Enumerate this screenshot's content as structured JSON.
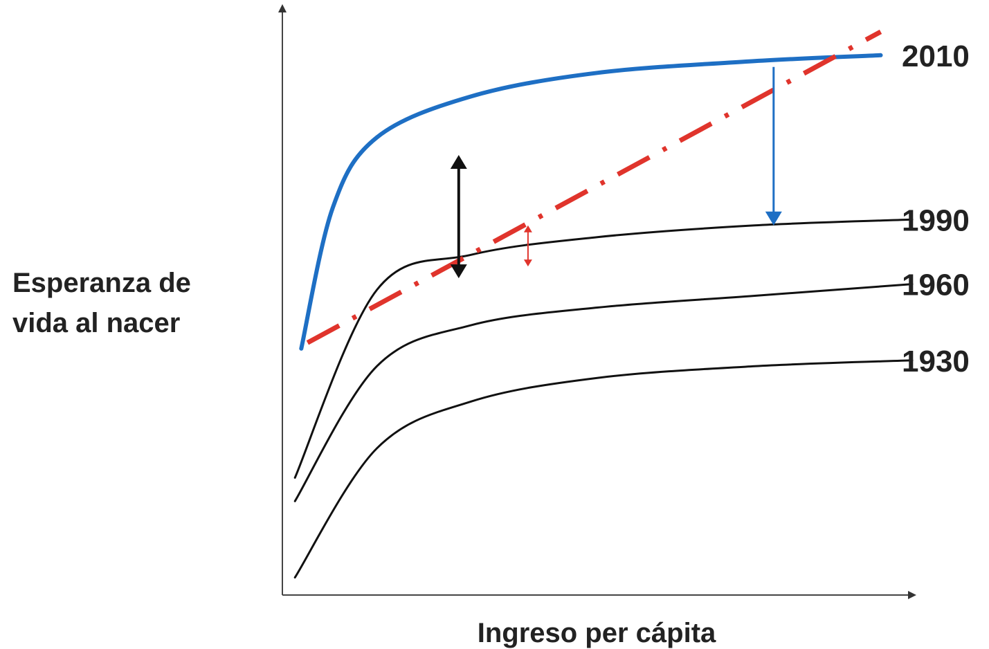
{
  "chart_data": {
    "type": "line",
    "xlabel": "Ingreso per cápita",
    "ylabel_lines": [
      "Esperanza de",
      "vida al nacer"
    ],
    "series": [
      {
        "name": "1930",
        "color": "#111111",
        "style": "solid",
        "points": [
          [
            0.02,
            0.03
          ],
          [
            0.15,
            0.25
          ],
          [
            0.3,
            0.33
          ],
          [
            0.5,
            0.37
          ],
          [
            0.75,
            0.39
          ],
          [
            1.0,
            0.4
          ]
        ]
      },
      {
        "name": "1960",
        "color": "#111111",
        "style": "solid",
        "points": [
          [
            0.02,
            0.16
          ],
          [
            0.15,
            0.39
          ],
          [
            0.3,
            0.46
          ],
          [
            0.5,
            0.49
          ],
          [
            0.75,
            0.51
          ],
          [
            1.0,
            0.53
          ]
        ]
      },
      {
        "name": "1990",
        "color": "#111111",
        "style": "solid",
        "points": [
          [
            0.02,
            0.2
          ],
          [
            0.15,
            0.52
          ],
          [
            0.3,
            0.58
          ],
          [
            0.5,
            0.61
          ],
          [
            0.75,
            0.63
          ],
          [
            1.0,
            0.64
          ]
        ]
      },
      {
        "name": "2010",
        "color": "#1e6fc4",
        "style": "thick",
        "points": [
          [
            0.03,
            0.42
          ],
          [
            0.08,
            0.66
          ],
          [
            0.15,
            0.78
          ],
          [
            0.3,
            0.85
          ],
          [
            0.5,
            0.89
          ],
          [
            0.75,
            0.91
          ],
          [
            0.95,
            0.92
          ]
        ]
      }
    ],
    "trend_line": {
      "color": "#e0342c",
      "style": "dash-dot",
      "points": [
        [
          0.04,
          0.43
        ],
        [
          0.95,
          0.96
        ]
      ]
    },
    "annotations": [
      {
        "type": "double-arrow",
        "color": "#111111",
        "x": 0.28,
        "y_from": 0.54,
        "y_to": 0.75
      },
      {
        "type": "double-arrow",
        "color": "#e0342c",
        "x": 0.39,
        "y_from": 0.56,
        "y_to": 0.63
      },
      {
        "type": "arrow-down",
        "color": "#1e6fc4",
        "x": 0.78,
        "y_from": 0.9,
        "y_to": 0.63
      }
    ],
    "grid": false
  }
}
